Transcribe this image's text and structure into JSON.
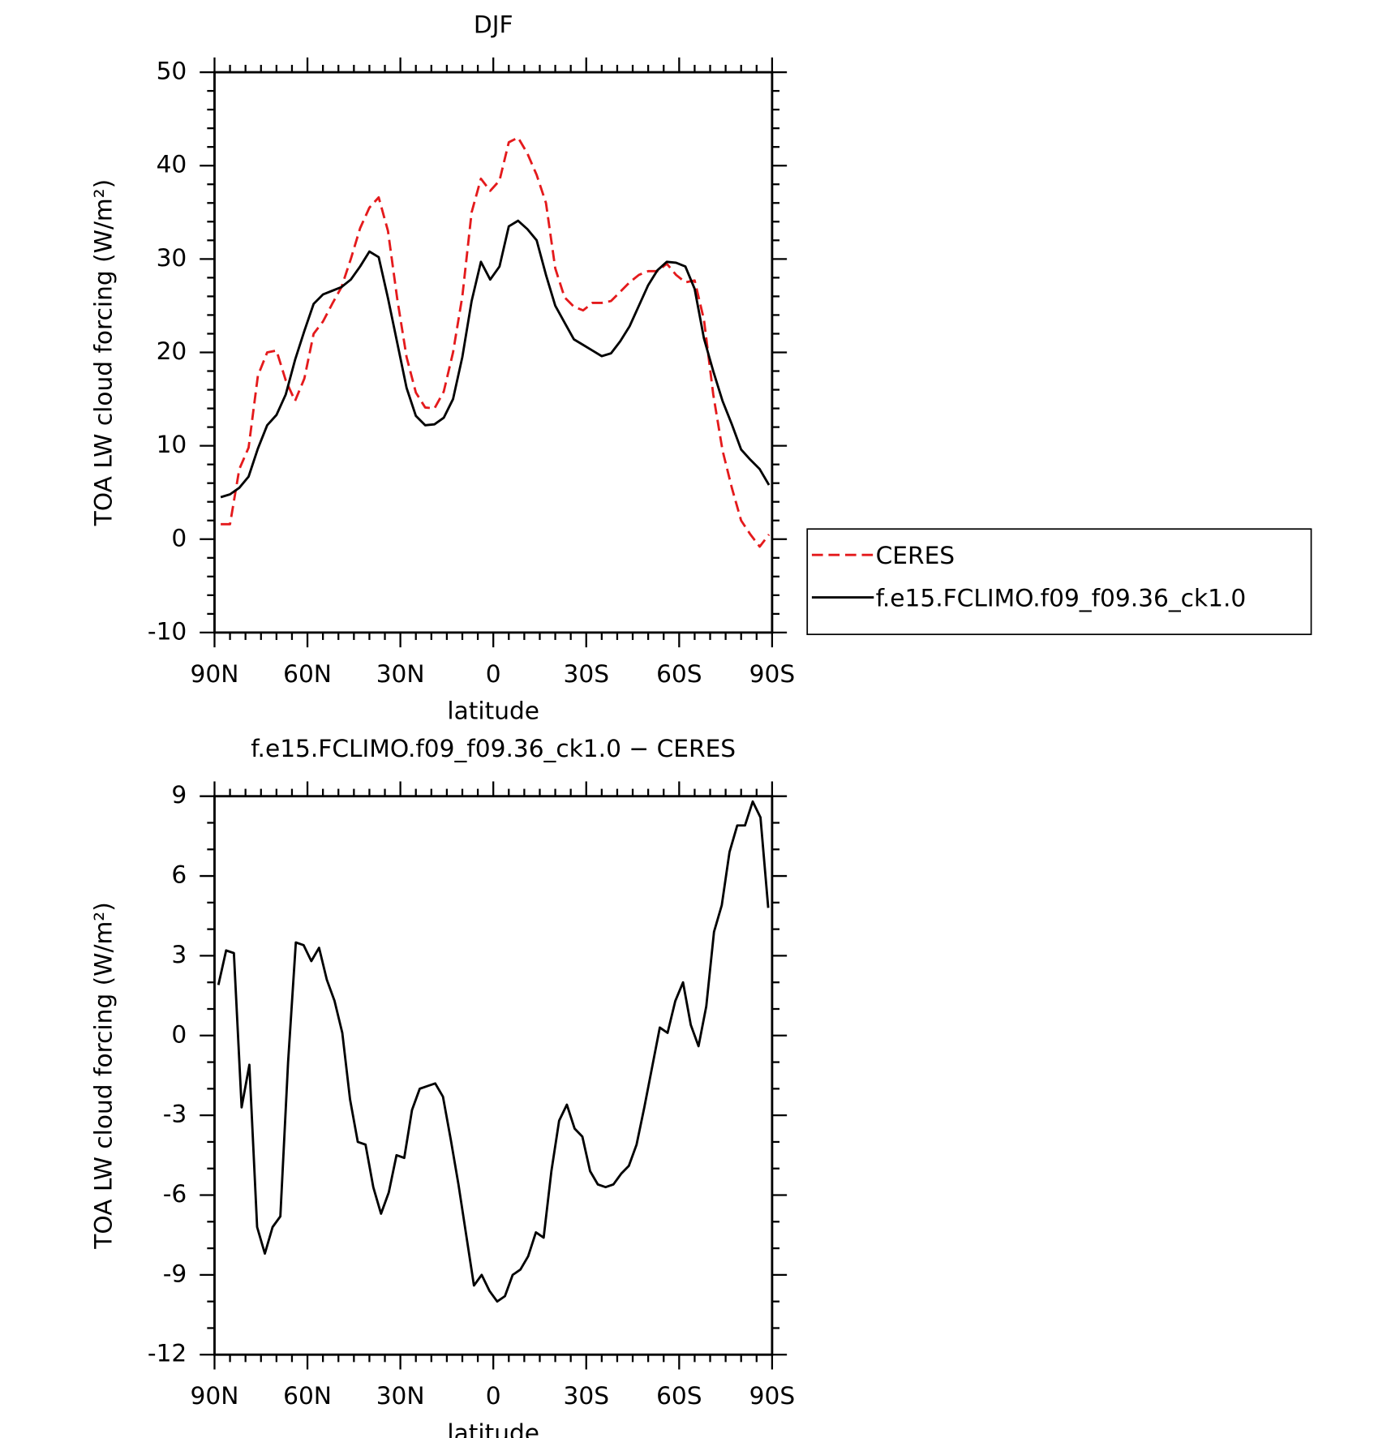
{
  "chart_data": [
    {
      "type": "line",
      "title": "DJF",
      "xlabel": "latitude",
      "ylabel": "TOA LW cloud forcing (W/m²)",
      "x": [
        88,
        85,
        82,
        79,
        76,
        73,
        70,
        67,
        64,
        61,
        58,
        55,
        52,
        49,
        46,
        43,
        40,
        37,
        34,
        31,
        28,
        25,
        22,
        19,
        16,
        13,
        10,
        7,
        4,
        1,
        -2,
        -5,
        -8,
        -11,
        -14,
        -17,
        -20,
        -23,
        -26,
        -29,
        -32,
        -35,
        -38,
        -41,
        -44,
        -47,
        -50,
        -53,
        -56,
        -59,
        -62,
        -65,
        -68,
        -71,
        -74,
        -77,
        -80,
        -83,
        -86,
        -89
      ],
      "series": [
        {
          "name": "CERES",
          "color": "#e41a1c",
          "linestyle": "dashed",
          "values": [
            1.6,
            1.6,
            7.5,
            9.8,
            17.5,
            20,
            20.2,
            17,
            14.8,
            17.2,
            22,
            23.3,
            25.2,
            27,
            30,
            33.3,
            35.5,
            36.6,
            33,
            25.7,
            19.5,
            15.7,
            14.1,
            14,
            15.8,
            20,
            26,
            35,
            38.6,
            37.3,
            38.4,
            42.5,
            43,
            41.3,
            39,
            36,
            29,
            25.9,
            24.9,
            24.5,
            25.3,
            25.3,
            25.5,
            26.5,
            27.5,
            28.3,
            28.7,
            28.7,
            29.5,
            28.3,
            27.5,
            27.7,
            23.5,
            15.5,
            9.5,
            5.5,
            2,
            0.5,
            -0.8,
            0.5
          ]
        },
        {
          "name": "f.e15.FCLIMO.f09_f09.36_ck1.0",
          "color": "#000000",
          "linestyle": "solid",
          "values": [
            4.5,
            4.8,
            5.5,
            6.7,
            9.7,
            12.2,
            13.3,
            15.5,
            19.2,
            22.3,
            25.2,
            26.2,
            26.6,
            27,
            27.8,
            29.2,
            30.8,
            30.2,
            25.8,
            21,
            16.2,
            13.2,
            12.2,
            12.3,
            13,
            15,
            19.5,
            25.5,
            29.7,
            27.8,
            29.2,
            33.5,
            34.1,
            33.2,
            32,
            28.3,
            25,
            23.2,
            21.4,
            20.8,
            20.2,
            19.6,
            19.9,
            21.2,
            22.8,
            25,
            27.2,
            28.8,
            29.7,
            29.6,
            29.2,
            26.8,
            21.5,
            18,
            14.8,
            12.3,
            9.6,
            8.5,
            7.5,
            5.8
          ]
        }
      ],
      "xlim": [
        90,
        -90
      ],
      "xticks": [
        {
          "value": 90,
          "label": "90N"
        },
        {
          "value": 60,
          "label": "60N"
        },
        {
          "value": 30,
          "label": "30N"
        },
        0,
        {
          "value": -30,
          "label": "30S"
        },
        {
          "value": -60,
          "label": "60S"
        },
        {
          "value": -90,
          "label": "90S"
        }
      ],
      "xminorticks": [
        85,
        80,
        75,
        70,
        65,
        55,
        50,
        45,
        40,
        35,
        25,
        20,
        15,
        10,
        5,
        -5,
        -10,
        -15,
        -20,
        -25,
        -35,
        -40,
        -45,
        -50,
        -55,
        -65,
        -70,
        -75,
        -80,
        -85
      ],
      "ylim": [
        -10,
        50
      ],
      "yticks": [
        -10,
        0,
        10,
        20,
        30,
        40,
        50
      ],
      "yminorticks": [
        -8,
        -6,
        -4,
        -2,
        2,
        4,
        6,
        8,
        12,
        14,
        16,
        18,
        22,
        24,
        26,
        28,
        32,
        34,
        36,
        38,
        42,
        44,
        46,
        48
      ],
      "legend": "right"
    },
    {
      "type": "line",
      "title": "f.e15.FCLIMO.f09_f09.36_ck1.0 − CERES",
      "xlabel": "latitude",
      "ylabel": "TOA LW cloud forcing (W/m²)",
      "x": [
        88.75,
        86.25,
        83.75,
        81.25,
        78.75,
        76.25,
        73.75,
        71.25,
        68.75,
        66.25,
        63.75,
        61.25,
        58.75,
        56.25,
        53.75,
        51.25,
        48.75,
        46.25,
        43.75,
        41.25,
        38.75,
        36.25,
        33.75,
        31.25,
        28.75,
        26.25,
        23.75,
        21.25,
        18.75,
        16.25,
        13.75,
        11.25,
        8.75,
        6.25,
        3.75,
        1.25,
        -1.25,
        -3.75,
        -6.25,
        -8.75,
        -11.25,
        -13.75,
        -16.25,
        -18.75,
        -21.25,
        -23.75,
        -26.25,
        -28.75,
        -31.25,
        -33.75,
        -36.25,
        -38.75,
        -41.25,
        -43.75,
        -46.25,
        -48.75,
        -51.25,
        -53.75,
        -56.25,
        -58.75,
        -61.25,
        -63.75,
        -66.25,
        -68.75,
        -71.25,
        -73.75,
        -76.25,
        -78.75,
        -81.25,
        -83.75,
        -86.25,
        -88.75
      ],
      "color": "#000000",
      "values": [
        1.9,
        3.2,
        3.1,
        -2.7,
        -1.1,
        -7.2,
        -8.2,
        -7.2,
        -6.8,
        -1,
        3.5,
        3.4,
        2.8,
        3.3,
        2.1,
        1.3,
        0.1,
        -2.4,
        -4,
        -4.1,
        -5.7,
        -6.7,
        -5.9,
        -4.5,
        -4.6,
        -2.8,
        -2,
        -1.9,
        -1.8,
        -2.3,
        -3.9,
        -5.6,
        -7.5,
        -9.4,
        -9,
        -9.6,
        -10,
        -9.8,
        -9,
        -8.8,
        -8.3,
        -7.4,
        -7.6,
        -5.1,
        -3.2,
        -2.6,
        -3.5,
        -3.8,
        -5.1,
        -5.6,
        -5.7,
        -5.6,
        -5.2,
        -4.9,
        -4.1,
        -2.7,
        -1.2,
        0.3,
        0.1,
        1.3,
        2,
        0.4,
        -0.4,
        1.1,
        3.9,
        4.9,
        6.9,
        7.9,
        7.9,
        8.8,
        8.2,
        4.8
      ],
      "xlim": [
        90,
        -90
      ],
      "xticks": [
        {
          "value": 90,
          "label": "90N"
        },
        {
          "value": 60,
          "label": "60N"
        },
        {
          "value": 30,
          "label": "30N"
        },
        0,
        {
          "value": -30,
          "label": "30S"
        },
        {
          "value": -60,
          "label": "60S"
        },
        {
          "value": -90,
          "label": "90S"
        }
      ],
      "xminorticks": [
        85,
        80,
        75,
        70,
        65,
        55,
        50,
        45,
        40,
        35,
        25,
        20,
        15,
        10,
        5,
        -5,
        -10,
        -15,
        -20,
        -25,
        -35,
        -40,
        -45,
        -50,
        -55,
        -65,
        -70,
        -75,
        -80,
        -85
      ],
      "ylim": [
        -12,
        9
      ],
      "yticks": [
        -12,
        -9,
        -6,
        -3,
        0,
        3,
        6,
        9
      ],
      "yminorticks": [
        -11,
        -10,
        -8,
        -7,
        -5,
        -4,
        -2,
        -1,
        1,
        2,
        4,
        5,
        7,
        8
      ]
    }
  ]
}
